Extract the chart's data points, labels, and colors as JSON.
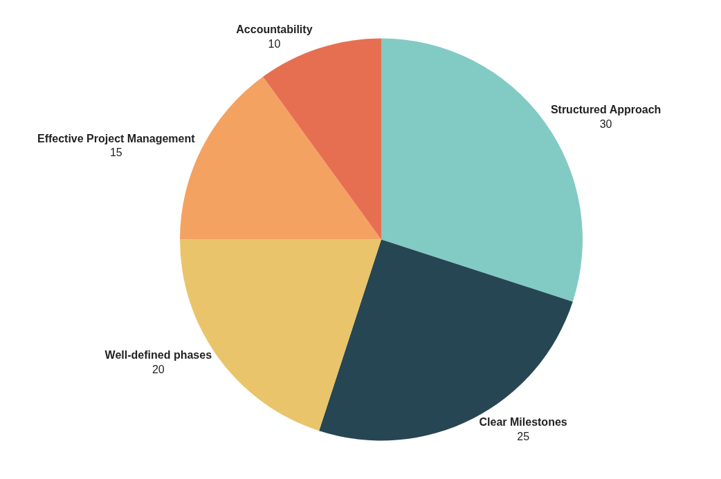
{
  "chart_data": {
    "type": "pie",
    "categories": [
      "Structured Approach",
      "Clear Milestones",
      "Well-defined phases",
      "Effective Project Management",
      "Accountability"
    ],
    "values": [
      30,
      25,
      20,
      15,
      10
    ],
    "colors": [
      "#82cbc4",
      "#264653",
      "#e9c46a",
      "#f4a261",
      "#e76f51"
    ],
    "data_labels": true,
    "legend": false
  }
}
